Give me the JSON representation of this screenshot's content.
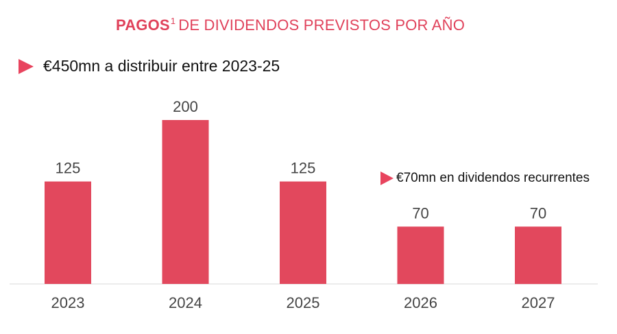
{
  "header": {
    "title_bold": "PAGOS",
    "title_sup": "1",
    "title_rest": "DE DIVIDENDOS PREVISTOS POR AÑO"
  },
  "callouts": {
    "total": "€450mn a distribuir entre 2023-25",
    "recurring": "€70mn en dividendos recurrentes"
  },
  "colors": {
    "accent": "#e2485d",
    "title": "#e0415a"
  },
  "chart_data": {
    "type": "bar",
    "title": "PAGOS1 DE DIVIDENDOS PREVISTOS POR AÑO",
    "categories": [
      "2023",
      "2024",
      "2025",
      "2026",
      "2027"
    ],
    "values": [
      125,
      200,
      125,
      70,
      70
    ],
    "xlabel": "",
    "ylabel": "",
    "ylim": [
      0,
      200
    ],
    "grid": false,
    "unit": "€mn"
  }
}
